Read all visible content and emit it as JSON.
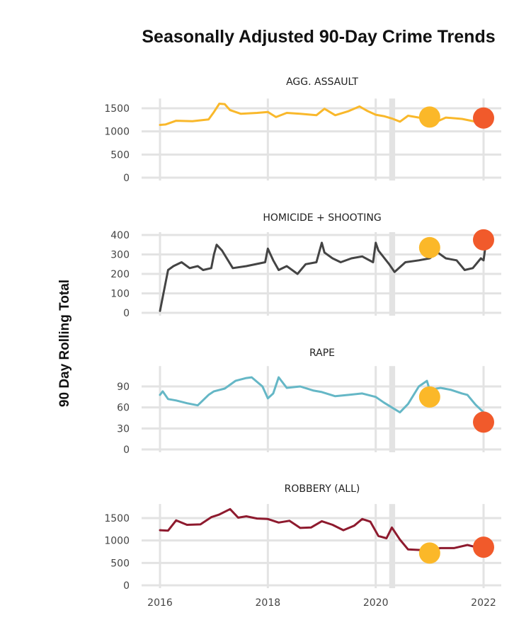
{
  "chart_data": {
    "type": "line",
    "title": "Seasonally Adjusted 90-Day Crime Trends",
    "ylabel": "90 Day Rolling Total",
    "xlabel": "",
    "x_ticks": [
      2016,
      2018,
      2020,
      2022
    ],
    "xlim": [
      2016,
      2022.35
    ],
    "grid": true,
    "shaded_period": [
      2020.25,
      2020.36
    ],
    "marker_colors": {
      "earlier": "#FBB829",
      "latest": "#F15A2B"
    },
    "panels": [
      {
        "name": "AGG. ASSAULT",
        "color": "#F9B82B",
        "ylim": [
          0,
          1650
        ],
        "y_ticks": [
          0,
          500,
          1000,
          1500
        ],
        "x": [
          2016,
          2016.1,
          2016.3,
          2016.6,
          2016.9,
          2017.0,
          2017.1,
          2017.2,
          2017.3,
          2017.5,
          2017.8,
          2018.0,
          2018.15,
          2018.35,
          2018.6,
          2018.9,
          2019.05,
          2019.25,
          2019.5,
          2019.7,
          2019.85,
          2020.0,
          2020.15,
          2020.3,
          2020.45,
          2020.6,
          2020.8,
          2021.0,
          2021.15,
          2021.3,
          2021.6,
          2021.85,
          2022.0,
          2022.05
        ],
        "y": [
          1140,
          1150,
          1230,
          1220,
          1260,
          1420,
          1600,
          1590,
          1460,
          1380,
          1400,
          1420,
          1310,
          1400,
          1380,
          1350,
          1490,
          1350,
          1440,
          1540,
          1440,
          1360,
          1330,
          1280,
          1210,
          1340,
          1300,
          1280,
          1220,
          1300,
          1270,
          1210,
          1230,
          1280
        ],
        "markers": [
          {
            "x": 2021.0,
            "y": 1310
          },
          {
            "x": 2022.0,
            "y": 1290
          }
        ]
      },
      {
        "name": "HOMICIDE + SHOOTING",
        "color": "#444444",
        "ylim": [
          0,
          400
        ],
        "y_ticks": [
          0,
          100,
          200,
          300,
          400
        ],
        "x": [
          2016,
          2016.05,
          2016.15,
          2016.25,
          2016.4,
          2016.55,
          2016.7,
          2016.8,
          2016.95,
          2017.0,
          2017.05,
          2017.15,
          2017.35,
          2017.6,
          2017.95,
          2018.0,
          2018.1,
          2018.2,
          2018.35,
          2018.55,
          2018.7,
          2018.9,
          2019.0,
          2019.05,
          2019.2,
          2019.35,
          2019.55,
          2019.75,
          2019.95,
          2020.0,
          2020.05,
          2020.25,
          2020.35,
          2020.55,
          2020.8,
          2021.0,
          2021.15,
          2021.3,
          2021.5,
          2021.65,
          2021.8,
          2021.95,
          2022.0,
          2022.05
        ],
        "y": [
          10,
          80,
          220,
          240,
          260,
          230,
          240,
          220,
          230,
          300,
          350,
          320,
          230,
          240,
          260,
          330,
          270,
          220,
          240,
          200,
          250,
          260,
          360,
          310,
          280,
          260,
          280,
          290,
          260,
          360,
          320,
          250,
          210,
          260,
          270,
          280,
          310,
          280,
          270,
          220,
          230,
          280,
          270,
          370
        ],
        "markers": [
          {
            "x": 2021.0,
            "y": 335
          },
          {
            "x": 2022.0,
            "y": 375
          }
        ]
      },
      {
        "name": "RAPE",
        "color": "#65B7C6",
        "ylim": [
          0,
          115
        ],
        "y_ticks": [
          0,
          30,
          60,
          90
        ],
        "x": [
          2016,
          2016.05,
          2016.15,
          2016.3,
          2016.5,
          2016.7,
          2016.9,
          2017.0,
          2017.2,
          2017.4,
          2017.6,
          2017.7,
          2017.9,
          2018.0,
          2018.1,
          2018.2,
          2018.35,
          2018.6,
          2018.85,
          2019.0,
          2019.25,
          2019.5,
          2019.75,
          2020.0,
          2020.15,
          2020.3,
          2020.45,
          2020.6,
          2020.8,
          2020.95,
          2021.0,
          2021.2,
          2021.4,
          2021.6,
          2021.7,
          2021.85,
          2022.0,
          2022.05
        ],
        "y": [
          78,
          83,
          72,
          70,
          66,
          63,
          78,
          83,
          87,
          98,
          102,
          103,
          90,
          73,
          80,
          103,
          88,
          90,
          84,
          82,
          76,
          78,
          80,
          75,
          67,
          60,
          53,
          65,
          90,
          98,
          85,
          88,
          85,
          80,
          78,
          64,
          53,
          43
        ],
        "markers": [
          {
            "x": 2021.0,
            "y": 75
          },
          {
            "x": 2022.0,
            "y": 39
          }
        ]
      },
      {
        "name": "ROBBERY (ALL)",
        "color": "#8E1A2E",
        "ylim": [
          0,
          1750
        ],
        "y_ticks": [
          0,
          500,
          1000,
          1500
        ],
        "x": [
          2016,
          2016.15,
          2016.3,
          2016.5,
          2016.75,
          2016.95,
          2017.1,
          2017.3,
          2017.45,
          2017.6,
          2017.8,
          2018.0,
          2018.2,
          2018.4,
          2018.6,
          2018.8,
          2019.0,
          2019.2,
          2019.4,
          2019.6,
          2019.75,
          2019.9,
          2020.05,
          2020.2,
          2020.3,
          2020.45,
          2020.6,
          2020.8,
          2021.0,
          2021.2,
          2021.45,
          2021.7,
          2021.9,
          2022.0,
          2022.05
        ],
        "y": [
          1230,
          1220,
          1450,
          1350,
          1360,
          1520,
          1580,
          1700,
          1510,
          1540,
          1490,
          1480,
          1400,
          1440,
          1280,
          1290,
          1430,
          1350,
          1230,
          1330,
          1480,
          1420,
          1100,
          1050,
          1290,
          1020,
          800,
          790,
          780,
          830,
          830,
          900,
          840,
          860,
          850
        ],
        "markers": [
          {
            "x": 2021.0,
            "y": 720
          },
          {
            "x": 2022.0,
            "y": 850
          }
        ]
      }
    ]
  }
}
